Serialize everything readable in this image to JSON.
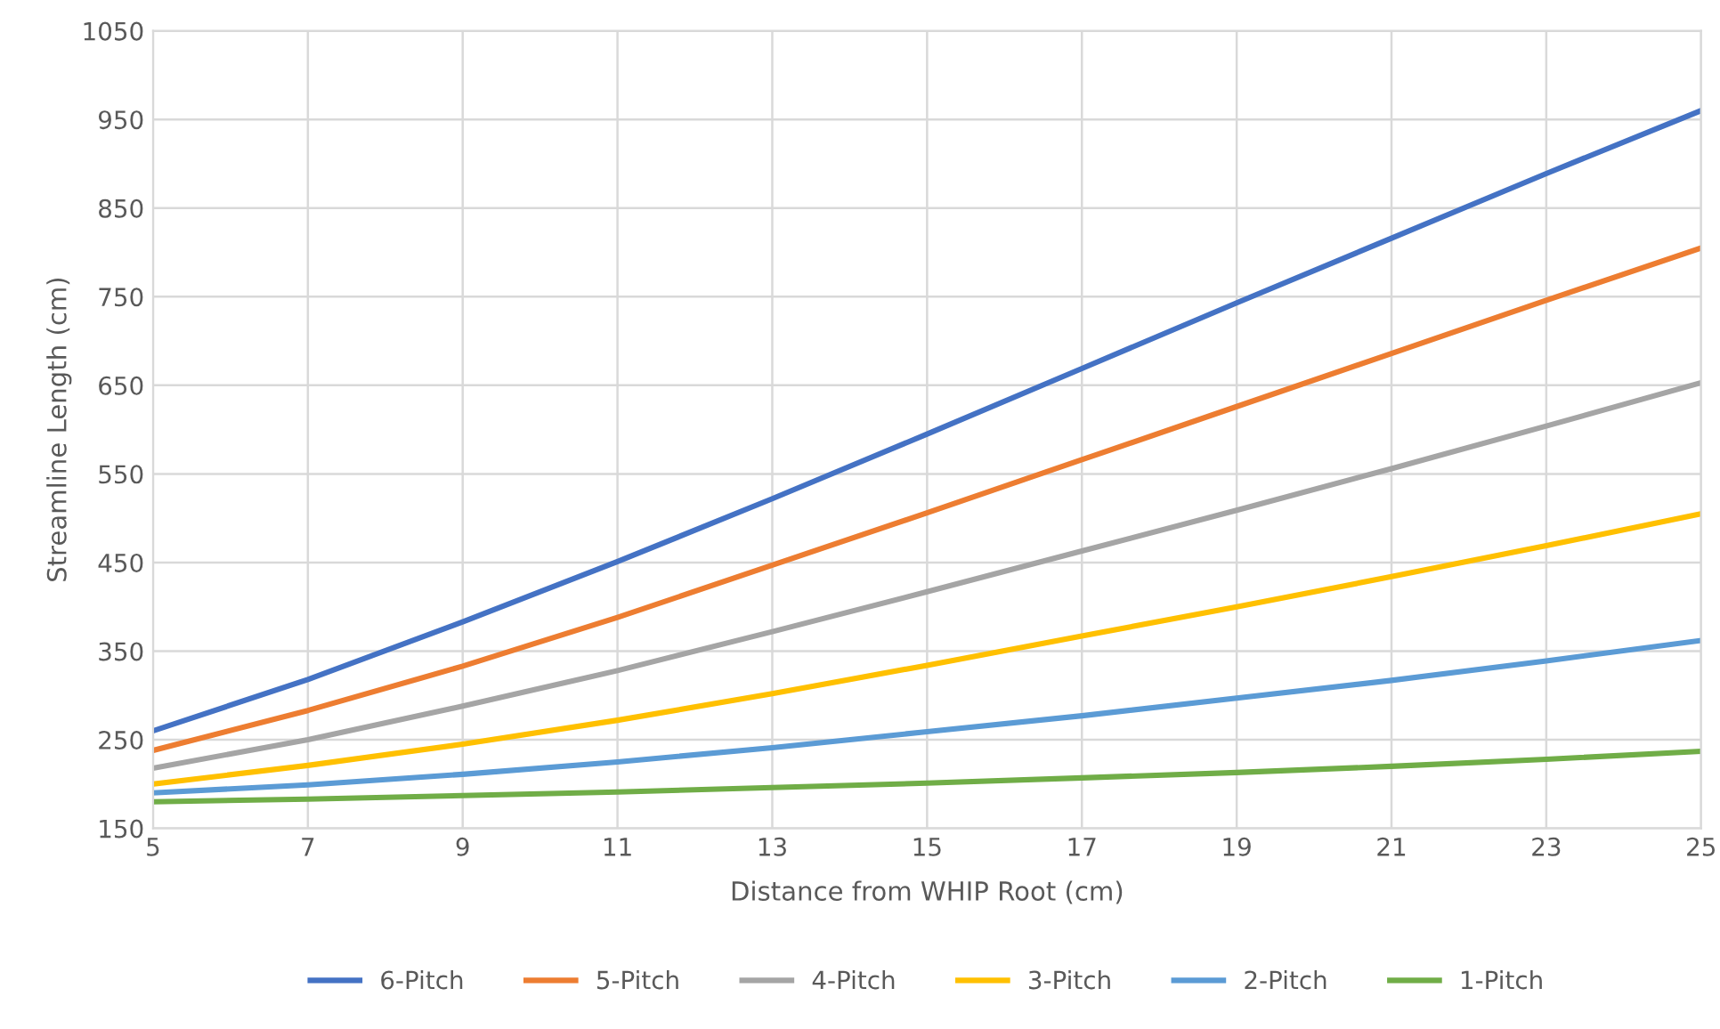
{
  "chart_data": {
    "type": "line",
    "xlabel": "Distance from WHIP Root (cm)",
    "ylabel": "Streamline Length (cm)",
    "x": [
      5,
      7,
      9,
      11,
      13,
      15,
      17,
      19,
      21,
      23,
      25
    ],
    "series": [
      {
        "name": "6-Pitch",
        "color": "#4472c4",
        "values": [
          260,
          318,
          383,
          451,
          522,
          595,
          669,
          743,
          816,
          889,
          960
        ]
      },
      {
        "name": "5-Pitch",
        "color": "#ed7d31",
        "values": [
          238,
          283,
          333,
          388,
          447,
          506,
          566,
          626,
          686,
          746,
          805
        ]
      },
      {
        "name": "4-Pitch",
        "color": "#a5a5a5",
        "values": [
          218,
          250,
          288,
          328,
          372,
          417,
          463,
          509,
          556,
          604,
          653
        ]
      },
      {
        "name": "3-Pitch",
        "color": "#ffc000",
        "values": [
          200,
          221,
          245,
          272,
          302,
          334,
          367,
          400,
          434,
          469,
          505
        ]
      },
      {
        "name": "2-Pitch",
        "color": "#5b9bd5",
        "values": [
          190,
          199,
          211,
          225,
          241,
          259,
          277,
          297,
          317,
          339,
          362
        ]
      },
      {
        "name": "1-Pitch",
        "color": "#70ad47",
        "values": [
          180,
          183,
          187,
          191,
          196,
          201,
          207,
          213,
          220,
          228,
          237
        ]
      }
    ],
    "xlim": [
      5,
      25
    ],
    "xticks": [
      5,
      7,
      9,
      11,
      13,
      15,
      17,
      19,
      21,
      23,
      25
    ],
    "ylim": [
      150,
      1050
    ],
    "yticks": [
      150,
      250,
      350,
      450,
      550,
      650,
      750,
      850,
      950,
      1050
    ],
    "grid": true,
    "legend": "bottom",
    "marker": "none",
    "line_style": "solid"
  }
}
